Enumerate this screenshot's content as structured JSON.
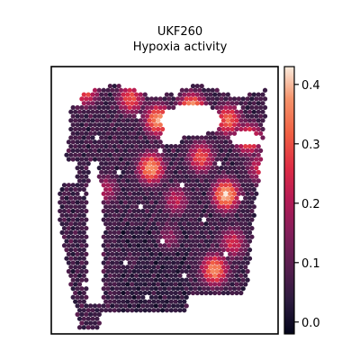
{
  "chart_data": {
    "type": "heatmap",
    "title": "UKF260",
    "subtitle": "Hypoxia activity",
    "xlabel": "",
    "ylabel": "",
    "grid": false,
    "colorbar": {
      "colormap": "rocket",
      "vmin": -0.02,
      "vmax": 0.43,
      "ticks": [
        0.0,
        0.1,
        0.2,
        0.3,
        0.4
      ],
      "tick_labels": [
        "0.0",
        "0.1",
        "0.2",
        "0.3",
        "0.4"
      ]
    },
    "hotspots": [
      {
        "x": 0.62,
        "y": 0.16,
        "value": 0.42
      },
      {
        "x": 0.47,
        "y": 0.2,
        "value": 0.38
      },
      {
        "x": 0.35,
        "y": 0.12,
        "value": 0.3
      },
      {
        "x": 0.78,
        "y": 0.2,
        "value": 0.33
      },
      {
        "x": 0.87,
        "y": 0.27,
        "value": 0.34
      },
      {
        "x": 0.44,
        "y": 0.38,
        "value": 0.38
      },
      {
        "x": 0.66,
        "y": 0.34,
        "value": 0.3
      },
      {
        "x": 0.77,
        "y": 0.48,
        "value": 0.41
      },
      {
        "x": 0.55,
        "y": 0.5,
        "value": 0.22
      },
      {
        "x": 0.24,
        "y": 0.46,
        "value": 0.2
      },
      {
        "x": 0.72,
        "y": 0.76,
        "value": 0.37
      },
      {
        "x": 0.8,
        "y": 0.66,
        "value": 0.25
      },
      {
        "x": 0.15,
        "y": 0.09,
        "value": 0.3
      },
      {
        "x": 0.92,
        "y": 0.38,
        "value": 0.24
      },
      {
        "x": 0.35,
        "y": 0.72,
        "value": 0.1
      },
      {
        "x": 0.52,
        "y": 0.64,
        "value": 0.18
      }
    ]
  }
}
